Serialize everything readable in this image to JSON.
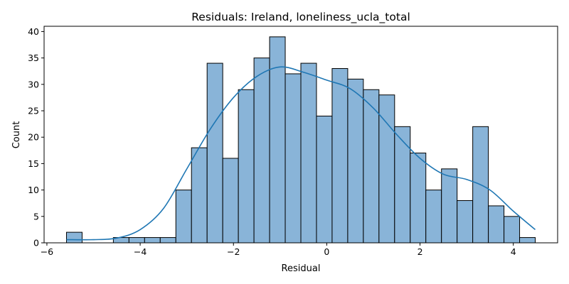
{
  "chart_data": {
    "type": "bar",
    "title": "Residuals: Ireland, loneliness_ucla_total",
    "xlabel": "Residual",
    "ylabel": "Count",
    "xlim": [
      -6.06,
      4.95
    ],
    "ylim": [
      0,
      41
    ],
    "xticks": [
      -6,
      -4,
      -2,
      0,
      2,
      4
    ],
    "yticks": [
      0,
      5,
      10,
      15,
      20,
      25,
      30,
      35,
      40
    ],
    "grid": false,
    "bin_edges": [
      -5.58,
      -5.245,
      -4.91,
      -4.575,
      -4.24,
      -3.905,
      -3.57,
      -3.235,
      -2.9,
      -2.565,
      -2.23,
      -1.895,
      -1.56,
      -1.225,
      -0.89,
      -0.555,
      -0.22,
      0.115,
      0.45,
      0.785,
      1.12,
      1.455,
      1.79,
      2.125,
      2.46,
      2.795,
      3.13,
      3.465,
      3.8,
      4.135,
      4.47
    ],
    "counts": [
      2,
      0,
      0,
      1,
      1,
      1,
      1,
      10,
      18,
      34,
      16,
      29,
      35,
      39,
      32,
      34,
      24,
      33,
      31,
      29,
      28,
      22,
      17,
      10,
      14,
      8,
      22,
      7,
      5,
      1
    ],
    "kde": {
      "x": [
        -5.58,
        -5.0,
        -4.5,
        -4.0,
        -3.5,
        -3.0,
        -2.5,
        -2.0,
        -1.5,
        -1.0,
        -0.5,
        0.0,
        0.5,
        1.0,
        1.5,
        2.0,
        2.5,
        3.0,
        3.5,
        4.0,
        4.47
      ],
      "y": [
        0.6,
        0.6,
        0.9,
        2.5,
        6.5,
        14.0,
        21.5,
        27.5,
        31.5,
        33.3,
        32.3,
        30.8,
        29.2,
        25.5,
        20.5,
        16.0,
        13.0,
        12.0,
        10.0,
        6.0,
        2.5
      ]
    },
    "colors": {
      "bar_fill": "#89b4d8",
      "bar_edge": "#000000",
      "kde_line": "#1f77b4",
      "axes": "#000000"
    }
  }
}
